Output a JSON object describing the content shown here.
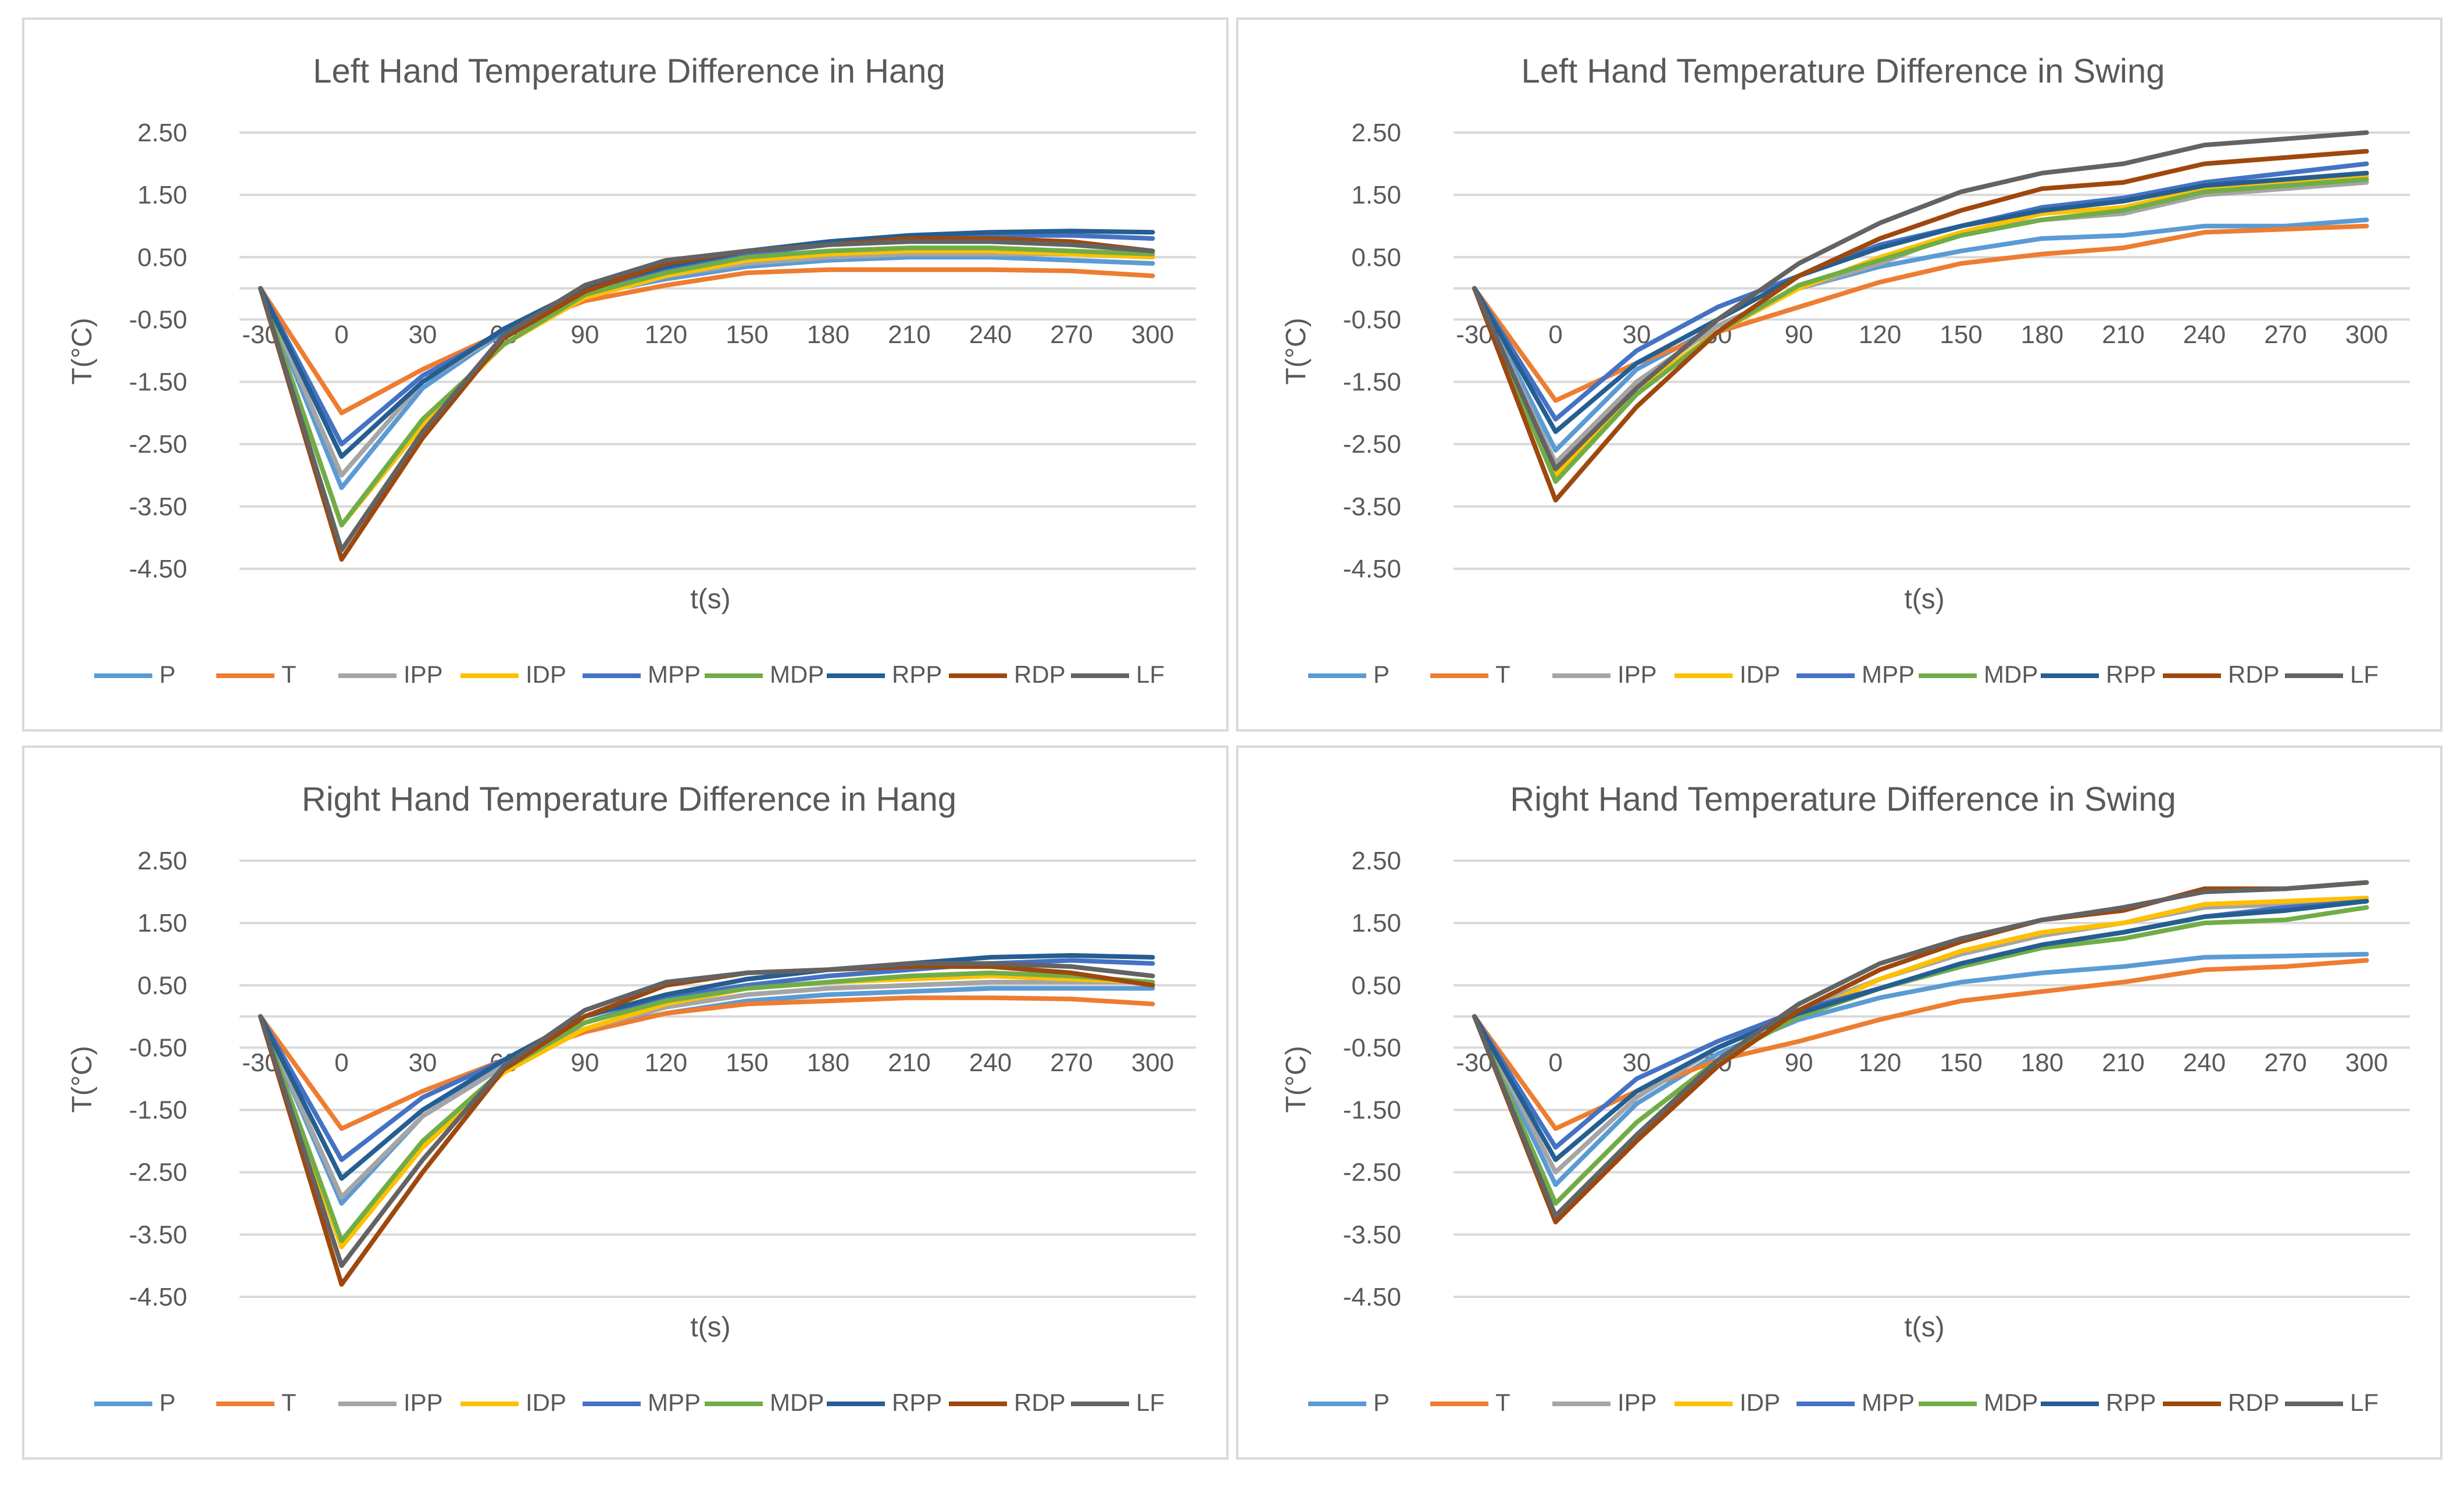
{
  "legend": [
    "P",
    "T",
    "IPP",
    "IDP",
    "MPP",
    "MDP",
    "RPP",
    "RDP",
    "LF"
  ],
  "colors": [
    "#5b9bd5",
    "#ed7d31",
    "#a5a5a5",
    "#ffc000",
    "#4472c4",
    "#70ad47",
    "#255e91",
    "#9e480e",
    "#636363"
  ],
  "chart_data": [
    {
      "type": "line",
      "title": "Left Hand Temperature Difference in Hang",
      "xlabel": "t(s)",
      "ylabel": "T(°C)",
      "x": [
        -30,
        0,
        30,
        60,
        90,
        120,
        150,
        180,
        210,
        240,
        270,
        300
      ],
      "x_tick_labels": [
        "-30",
        "0",
        "30",
        "60",
        "90",
        "120",
        "150",
        "180",
        "210",
        "240",
        "270",
        "300"
      ],
      "y_tick_labels": [
        "2.50",
        "1.50",
        "0.50",
        "-0.50",
        "-1.50",
        "-2.50",
        "-3.50",
        "-4.50"
      ],
      "ylim": [
        -4.5,
        2.5
      ],
      "legend_position": "bottom",
      "series": [
        {
          "name": "P",
          "values": [
            0,
            -3.2,
            -1.6,
            -0.7,
            -0.1,
            0.15,
            0.35,
            0.45,
            0.5,
            0.5,
            0.45,
            0.4
          ]
        },
        {
          "name": "T",
          "values": [
            0,
            -2.0,
            -1.3,
            -0.7,
            -0.2,
            0.05,
            0.25,
            0.3,
            0.3,
            0.3,
            0.28,
            0.2
          ]
        },
        {
          "name": "IPP",
          "values": [
            0,
            -3.0,
            -1.5,
            -0.7,
            -0.15,
            0.2,
            0.4,
            0.5,
            0.55,
            0.55,
            0.55,
            0.5
          ]
        },
        {
          "name": "IDP",
          "values": [
            0,
            -3.8,
            -2.2,
            -0.9,
            -0.15,
            0.2,
            0.45,
            0.55,
            0.6,
            0.6,
            0.55,
            0.5
          ]
        },
        {
          "name": "MPP",
          "values": [
            0,
            -2.5,
            -1.4,
            -0.7,
            -0.05,
            0.3,
            0.55,
            0.7,
            0.8,
            0.85,
            0.85,
            0.8
          ]
        },
        {
          "name": "MDP",
          "values": [
            0,
            -3.8,
            -2.1,
            -0.9,
            -0.1,
            0.25,
            0.5,
            0.6,
            0.65,
            0.65,
            0.6,
            0.55
          ]
        },
        {
          "name": "RPP",
          "values": [
            0,
            -2.7,
            -1.5,
            -0.65,
            0.0,
            0.35,
            0.6,
            0.75,
            0.85,
            0.9,
            0.92,
            0.9
          ]
        },
        {
          "name": "RDP",
          "values": [
            0,
            -4.35,
            -2.4,
            -0.8,
            -0.05,
            0.4,
            0.6,
            0.7,
            0.8,
            0.8,
            0.75,
            0.6
          ]
        },
        {
          "name": "LF",
          "values": [
            0,
            -4.2,
            -2.3,
            -0.75,
            0.05,
            0.45,
            0.6,
            0.7,
            0.75,
            0.75,
            0.7,
            0.6
          ]
        }
      ]
    },
    {
      "type": "line",
      "title": "Left Hand Temperature Difference in Swing",
      "xlabel": "t(s)",
      "ylabel": "T(°C)",
      "x": [
        -30,
        0,
        30,
        60,
        90,
        120,
        150,
        180,
        210,
        240,
        270,
        300
      ],
      "x_tick_labels": [
        "-30",
        "0",
        "30",
        "60",
        "90",
        "120",
        "150",
        "180",
        "210",
        "240",
        "270",
        "300"
      ],
      "y_tick_labels": [
        "2.50",
        "1.50",
        "0.50",
        "-0.50",
        "-1.50",
        "-2.50",
        "-3.50",
        "-4.50"
      ],
      "ylim": [
        -4.5,
        2.5
      ],
      "legend_position": "bottom",
      "series": [
        {
          "name": "P",
          "values": [
            0,
            -2.6,
            -1.3,
            -0.6,
            0.0,
            0.35,
            0.6,
            0.8,
            0.85,
            1.0,
            1.0,
            1.1
          ]
        },
        {
          "name": "T",
          "values": [
            0,
            -1.8,
            -1.2,
            -0.7,
            -0.3,
            0.1,
            0.4,
            0.55,
            0.65,
            0.9,
            0.95,
            1.0
          ]
        },
        {
          "name": "IPP",
          "values": [
            0,
            -2.8,
            -1.5,
            -0.6,
            0.0,
            0.4,
            0.9,
            1.1,
            1.2,
            1.5,
            1.6,
            1.7
          ]
        },
        {
          "name": "IDP",
          "values": [
            0,
            -3.0,
            -1.6,
            -0.7,
            0.0,
            0.5,
            0.9,
            1.2,
            1.3,
            1.6,
            1.7,
            1.8
          ]
        },
        {
          "name": "MPP",
          "values": [
            0,
            -2.1,
            -1.0,
            -0.3,
            0.2,
            0.7,
            1.0,
            1.3,
            1.45,
            1.7,
            1.85,
            2.0
          ]
        },
        {
          "name": "MDP",
          "values": [
            0,
            -3.1,
            -1.7,
            -0.7,
            0.05,
            0.45,
            0.85,
            1.1,
            1.25,
            1.55,
            1.65,
            1.75
          ]
        },
        {
          "name": "RPP",
          "values": [
            0,
            -2.3,
            -1.2,
            -0.5,
            0.2,
            0.65,
            1.0,
            1.25,
            1.4,
            1.65,
            1.75,
            1.85
          ]
        },
        {
          "name": "RDP",
          "values": [
            0,
            -3.4,
            -1.9,
            -0.7,
            0.2,
            0.8,
            1.25,
            1.6,
            1.7,
            2.0,
            2.1,
            2.2
          ]
        },
        {
          "name": "LF",
          "values": [
            0,
            -2.9,
            -1.6,
            -0.5,
            0.4,
            1.05,
            1.55,
            1.85,
            2.0,
            2.3,
            2.4,
            2.5
          ]
        }
      ]
    },
    {
      "type": "line",
      "title": "Right Hand Temperature Difference in Hang",
      "xlabel": "t(s)",
      "ylabel": "T(°C)",
      "x": [
        -30,
        0,
        30,
        60,
        90,
        120,
        150,
        180,
        210,
        240,
        270,
        300
      ],
      "x_tick_labels": [
        "-30",
        "0",
        "30",
        "60",
        "90",
        "120",
        "150",
        "180",
        "210",
        "240",
        "270",
        "300"
      ],
      "y_tick_labels": [
        "2.50",
        "1.50",
        "0.50",
        "-0.50",
        "-1.50",
        "-2.50",
        "-3.50",
        "-4.50"
      ],
      "ylim": [
        -4.5,
        2.5
      ],
      "legend_position": "bottom",
      "series": [
        {
          "name": "P",
          "values": [
            0,
            -3.0,
            -1.6,
            -0.75,
            -0.2,
            0.05,
            0.25,
            0.35,
            0.4,
            0.45,
            0.45,
            0.45
          ]
        },
        {
          "name": "T",
          "values": [
            0,
            -1.8,
            -1.2,
            -0.7,
            -0.25,
            0.05,
            0.2,
            0.25,
            0.3,
            0.3,
            0.28,
            0.2
          ]
        },
        {
          "name": "IPP",
          "values": [
            0,
            -2.9,
            -1.6,
            -0.8,
            -0.2,
            0.15,
            0.35,
            0.45,
            0.5,
            0.55,
            0.55,
            0.55
          ]
        },
        {
          "name": "IDP",
          "values": [
            0,
            -3.7,
            -2.1,
            -0.9,
            -0.2,
            0.2,
            0.45,
            0.55,
            0.6,
            0.65,
            0.6,
            0.55
          ]
        },
        {
          "name": "MPP",
          "values": [
            0,
            -2.3,
            -1.3,
            -0.7,
            -0.1,
            0.3,
            0.5,
            0.65,
            0.75,
            0.85,
            0.9,
            0.85
          ]
        },
        {
          "name": "MDP",
          "values": [
            0,
            -3.6,
            -2.0,
            -0.85,
            -0.1,
            0.25,
            0.45,
            0.55,
            0.65,
            0.7,
            0.65,
            0.55
          ]
        },
        {
          "name": "RPP",
          "values": [
            0,
            -2.6,
            -1.5,
            -0.7,
            0.0,
            0.35,
            0.6,
            0.75,
            0.85,
            0.95,
            0.98,
            0.95
          ]
        },
        {
          "name": "RDP",
          "values": [
            0,
            -4.3,
            -2.5,
            -0.85,
            0.0,
            0.5,
            0.7,
            0.75,
            0.8,
            0.8,
            0.7,
            0.5
          ]
        },
        {
          "name": "LF",
          "values": [
            0,
            -4.0,
            -2.3,
            -0.8,
            0.1,
            0.55,
            0.7,
            0.75,
            0.85,
            0.85,
            0.8,
            0.65
          ]
        }
      ]
    },
    {
      "type": "line",
      "title": "Right Hand Temperature Difference in Swing",
      "xlabel": "t(s)",
      "ylabel": "T(°C)",
      "x": [
        -30,
        0,
        30,
        60,
        90,
        120,
        150,
        180,
        210,
        240,
        270,
        300
      ],
      "x_tick_labels": [
        "-30",
        "0",
        "30",
        "60",
        "90",
        "120",
        "150",
        "180",
        "210",
        "240",
        "270",
        "300"
      ],
      "y_tick_labels": [
        "2.50",
        "1.50",
        "0.50",
        "-0.50",
        "-1.50",
        "-2.50",
        "-3.50",
        "-4.50"
      ],
      "ylim": [
        -4.5,
        2.5
      ],
      "legend_position": "bottom",
      "series": [
        {
          "name": "P",
          "values": [
            0,
            -2.7,
            -1.4,
            -0.6,
            -0.05,
            0.3,
            0.55,
            0.7,
            0.8,
            0.95,
            0.97,
            1.0
          ]
        },
        {
          "name": "T",
          "values": [
            0,
            -1.8,
            -1.2,
            -0.7,
            -0.4,
            -0.05,
            0.25,
            0.4,
            0.55,
            0.75,
            0.8,
            0.9
          ]
        },
        {
          "name": "IPP",
          "values": [
            0,
            -2.5,
            -1.3,
            -0.5,
            0.1,
            0.6,
            1.0,
            1.3,
            1.5,
            1.75,
            1.8,
            1.9
          ]
        },
        {
          "name": "IDP",
          "values": [
            0,
            -3.0,
            -1.7,
            -0.7,
            0.0,
            0.6,
            1.05,
            1.35,
            1.5,
            1.8,
            1.85,
            1.9
          ]
        },
        {
          "name": "MPP",
          "values": [
            0,
            -2.1,
            -1.0,
            -0.4,
            0.1,
            0.45,
            0.8,
            1.15,
            1.35,
            1.6,
            1.75,
            1.85
          ]
        },
        {
          "name": "MDP",
          "values": [
            0,
            -3.0,
            -1.7,
            -0.7,
            0.0,
            0.45,
            0.8,
            1.1,
            1.25,
            1.5,
            1.55,
            1.75
          ]
        },
        {
          "name": "RPP",
          "values": [
            0,
            -2.3,
            -1.2,
            -0.5,
            0.05,
            0.45,
            0.85,
            1.15,
            1.35,
            1.6,
            1.7,
            1.85
          ]
        },
        {
          "name": "RDP",
          "values": [
            0,
            -3.3,
            -2.0,
            -0.8,
            0.1,
            0.75,
            1.2,
            1.55,
            1.7,
            2.05,
            2.05,
            2.15
          ]
        },
        {
          "name": "LF",
          "values": [
            0,
            -3.2,
            -1.9,
            -0.7,
            0.2,
            0.85,
            1.25,
            1.55,
            1.75,
            2.0,
            2.05,
            2.15
          ]
        }
      ]
    }
  ]
}
